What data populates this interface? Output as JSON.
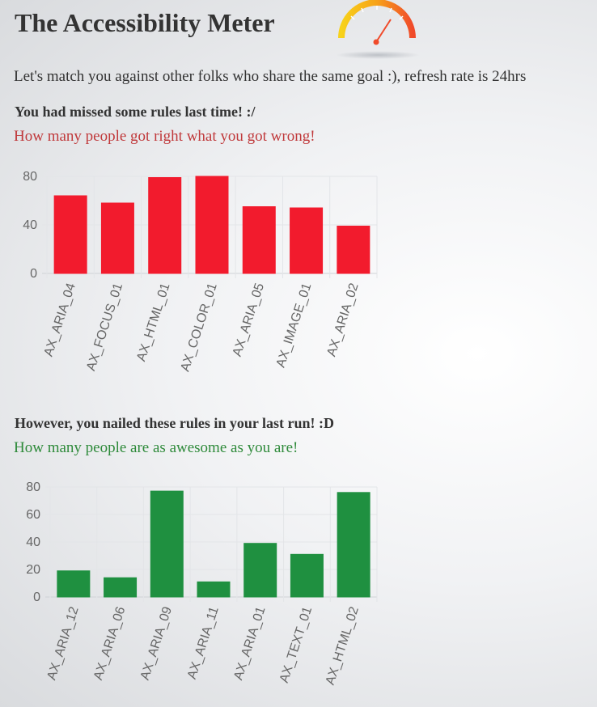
{
  "page": {
    "title": "The Accessibility Meter",
    "intro": "Let's match you against other folks who share the same goal :), refresh rate is 24hrs"
  },
  "missed": {
    "heading": "You had missed some rules last time! :/",
    "subheading": "How many people got right what you got wrong!"
  },
  "nailed": {
    "heading": "However, you nailed these rules in your last run! :D",
    "subheading": "How many people are as awesome as you are!"
  },
  "colors": {
    "missed_bar": "#f21b2d",
    "nailed_bar": "#1f9040",
    "missed_text": "#c0393b",
    "nailed_text": "#2e8a3a"
  },
  "chart_data": [
    {
      "type": "bar",
      "categories": [
        "AX_ARIA_04",
        "AX_FOCUS_01",
        "AX_HTML_01",
        "AX_COLOR_01",
        "AX_ARIA_05",
        "AX_IMAGE_01",
        "AX_ARIA_02"
      ],
      "values": [
        64,
        58,
        79,
        80,
        55,
        54,
        39
      ],
      "ylim": [
        0,
        80
      ],
      "yticks": [
        0,
        40,
        80
      ],
      "grid": true
    },
    {
      "type": "bar",
      "categories": [
        "AX_ARIA_12",
        "AX_ARIA_06",
        "AX_ARIA_09",
        "AX_ARIA_11",
        "AX_ARIA_01",
        "AX_TEXT_01",
        "AX_HTML_02"
      ],
      "values": [
        19,
        14,
        77,
        11,
        39,
        31,
        76
      ],
      "ylim": [
        0,
        80
      ],
      "yticks": [
        0,
        20,
        40,
        60,
        80
      ],
      "grid": true
    }
  ]
}
